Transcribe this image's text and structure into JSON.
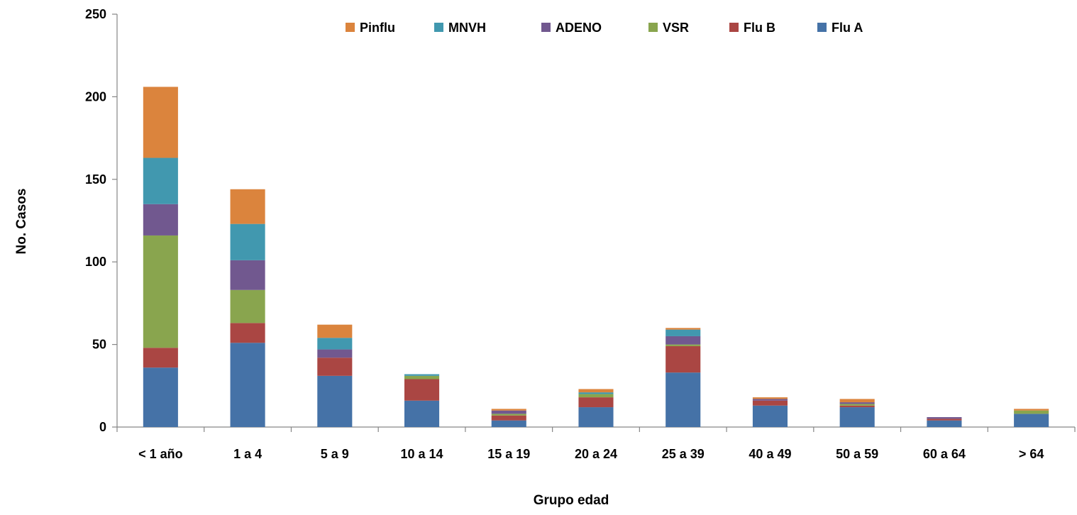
{
  "chart_data": {
    "type": "bar",
    "stacked": true,
    "title": "",
    "xlabel": "Grupo edad",
    "ylabel": "No. Casos",
    "ylim": [
      0,
      250
    ],
    "yticks": [
      "0",
      "50",
      "100",
      "150",
      "200",
      "250"
    ],
    "grid": false,
    "legend_position": "top",
    "categories": [
      "< 1 año",
      "1 a 4",
      "5 a 9",
      "10 a 14",
      "15 a 19",
      "20 a 24",
      "25 a 39",
      "40 a 49",
      "50 a 59",
      "60 a 64",
      "> 64"
    ],
    "series": [
      {
        "name": "Flu A",
        "color": "#4572A7",
        "values": [
          36,
          51,
          31,
          16,
          4,
          12,
          33,
          13,
          12,
          4,
          8
        ]
      },
      {
        "name": "Flu B",
        "color": "#AA4643",
        "values": [
          12,
          12,
          11,
          13,
          3,
          6,
          16,
          3,
          1,
          1,
          0
        ]
      },
      {
        "name": "VSR",
        "color": "#89A54E",
        "values": [
          68,
          20,
          0,
          2,
          1,
          2,
          1,
          0,
          1,
          0,
          2
        ]
      },
      {
        "name": "ADENO",
        "color": "#71588F",
        "values": [
          19,
          18,
          5,
          0,
          2,
          0,
          5,
          1,
          1,
          1,
          0
        ]
      },
      {
        "name": "MNVH",
        "color": "#4198AF",
        "values": [
          28,
          22,
          7,
          1,
          0,
          1,
          4,
          0,
          0,
          0,
          0
        ]
      },
      {
        "name": "Pinflu",
        "color": "#DB843D",
        "values": [
          43,
          21,
          8,
          0,
          1,
          2,
          1,
          1,
          2,
          0,
          1
        ]
      }
    ],
    "legend_order": [
      "Pinflu",
      "MNVH",
      "ADENO",
      "VSR",
      "Flu B",
      "Flu A"
    ]
  }
}
